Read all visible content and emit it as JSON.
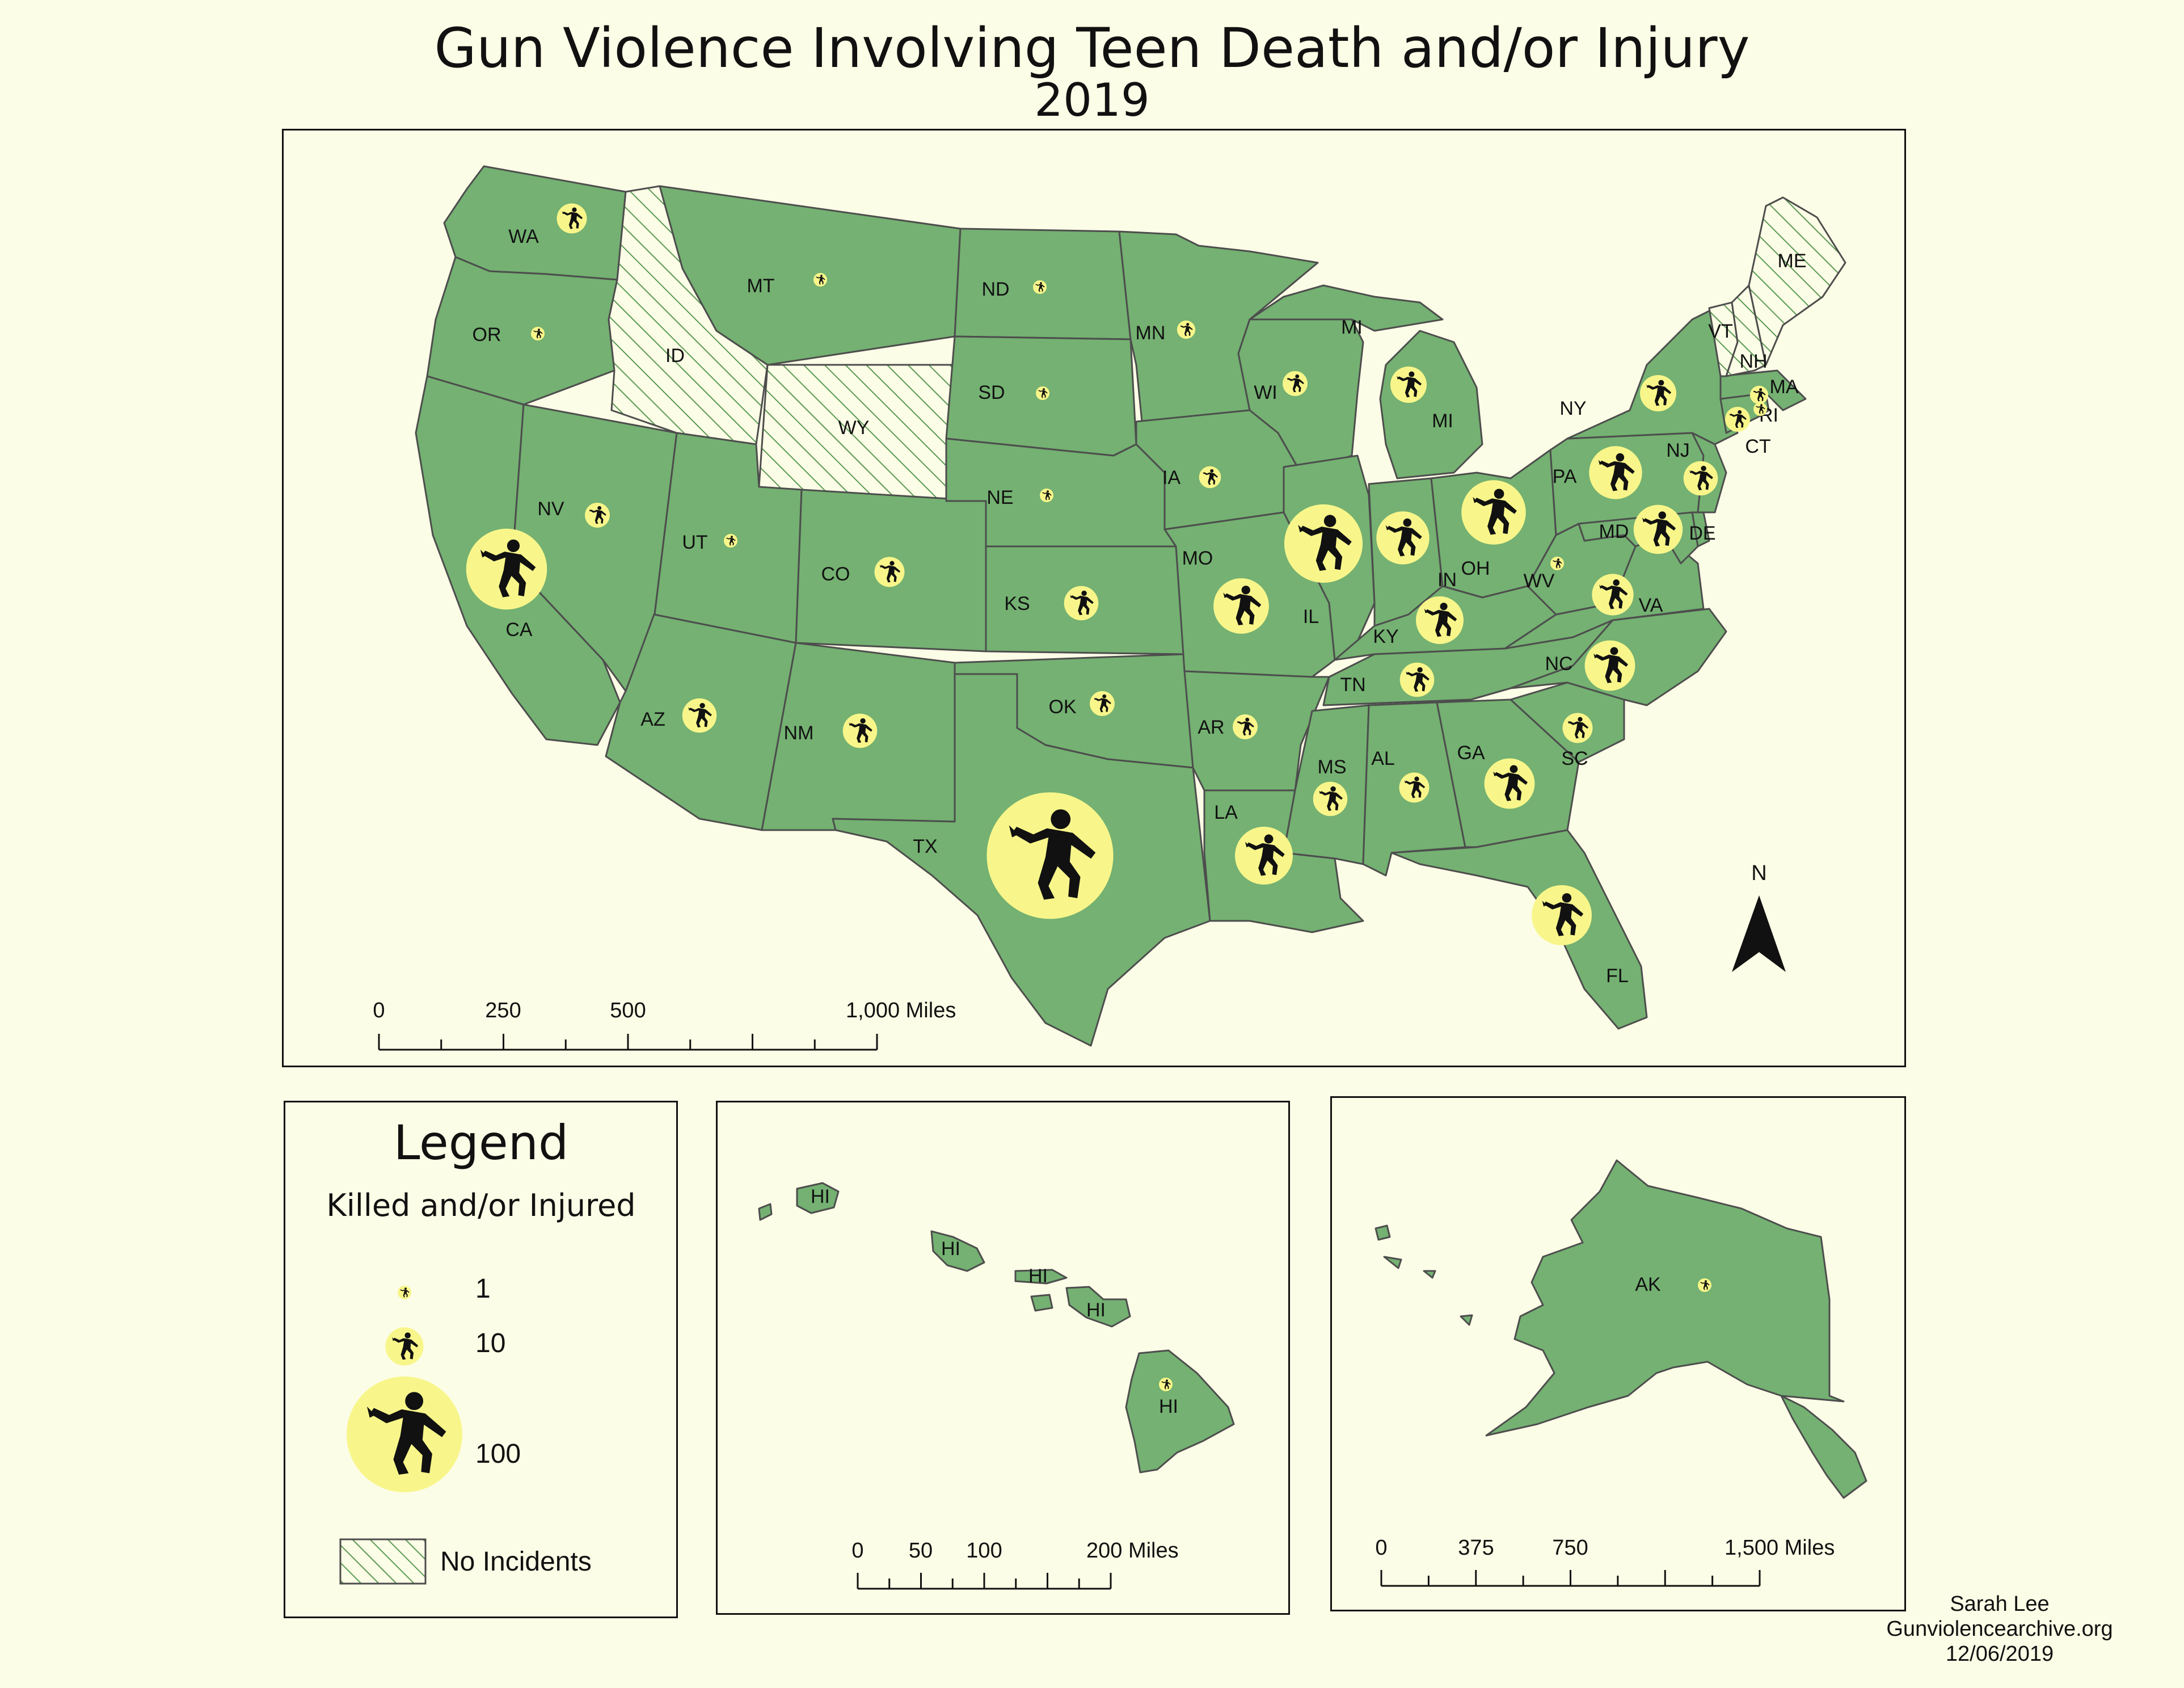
{
  "title": "Gun Violence Involving Teen Death and/or Injury",
  "subtitle": "2019",
  "colors": {
    "state": "#74b172",
    "stroke": "#4d4d4d",
    "circle": "#f8f68a",
    "background": "#fcfde6",
    "hatch": "#5a9a55"
  },
  "symbol_icon": "falling-person-icon",
  "north_arrow": {
    "label": "N",
    "icon": "north-arrow-icon"
  },
  "main_map": {
    "scalebar": {
      "labels": [
        "0",
        "250",
        "500",
        "1,000 Miles"
      ],
      "ticks": [
        0,
        125,
        250,
        375,
        500,
        625,
        750,
        875,
        1000
      ],
      "max": 1000
    },
    "no_incident_states": [
      "ID",
      "WY",
      "VT",
      "NH",
      "ME"
    ],
    "state_labels": [
      "WA",
      "OR",
      "CA",
      "NV",
      "ID",
      "MT",
      "WY",
      "UT",
      "CO",
      "AZ",
      "NM",
      "ND",
      "SD",
      "NE",
      "KS",
      "OK",
      "TX",
      "MN",
      "IA",
      "MO",
      "AR",
      "LA",
      "WI",
      "IL",
      "MI",
      "MI",
      "IN",
      "OH",
      "KY",
      "TN",
      "MS",
      "AL",
      "GA",
      "FL",
      "SC",
      "NC",
      "VA",
      "WV",
      "PA",
      "NY",
      "NJ",
      "DE",
      "MD",
      "CT",
      "RI",
      "MA",
      "NH",
      "VT",
      "ME"
    ],
    "incidents": [
      {
        "state": "TX",
        "count": 120
      },
      {
        "state": "CA",
        "count": 48
      },
      {
        "state": "IL",
        "count": 45
      },
      {
        "state": "OH",
        "count": 30
      },
      {
        "state": "FL",
        "count": 26
      },
      {
        "state": "LA",
        "count": 24
      },
      {
        "state": "MO",
        "count": 22
      },
      {
        "state": "GA",
        "count": 18
      },
      {
        "state": "IN",
        "count": 20
      },
      {
        "state": "PA",
        "count": 20
      },
      {
        "state": "NC",
        "count": 18
      },
      {
        "state": "MD",
        "count": 17
      },
      {
        "state": "KY",
        "count": 16
      },
      {
        "state": "VA",
        "count": 12
      },
      {
        "state": "NY",
        "count": 9
      },
      {
        "state": "MI",
        "count": 9
      },
      {
        "state": "TN",
        "count": 8
      },
      {
        "state": "NJ",
        "count": 8
      },
      {
        "state": "KS",
        "count": 8
      },
      {
        "state": "NM",
        "count": 8
      },
      {
        "state": "MS",
        "count": 8
      },
      {
        "state": "AZ",
        "count": 8
      },
      {
        "state": "AL",
        "count": 6
      },
      {
        "state": "CO",
        "count": 6
      },
      {
        "state": "WA",
        "count": 6
      },
      {
        "state": "SC",
        "count": 6
      },
      {
        "state": "WI",
        "count": 4
      },
      {
        "state": "CT",
        "count": 4
      },
      {
        "state": "AR",
        "count": 4
      },
      {
        "state": "OK",
        "count": 4
      },
      {
        "state": "NV",
        "count": 4
      },
      {
        "state": "IA",
        "count": 3
      },
      {
        "state": "MA",
        "count": 2
      },
      {
        "state": "MN",
        "count": 2
      },
      {
        "state": "NE",
        "count": 1
      },
      {
        "state": "OR",
        "count": 1
      },
      {
        "state": "UT",
        "count": 1
      },
      {
        "state": "MT",
        "count": 1
      },
      {
        "state": "ND",
        "count": 1
      },
      {
        "state": "SD",
        "count": 1
      },
      {
        "state": "WV",
        "count": 1
      },
      {
        "state": "RI",
        "count": 1
      }
    ]
  },
  "hawaii": {
    "labels": [
      "HI",
      "HI",
      "HI",
      "HI",
      "HI"
    ],
    "scalebar": {
      "labels": [
        "0",
        "50",
        "100",
        "200 Miles"
      ],
      "ticks": [
        0,
        25,
        50,
        75,
        100,
        125,
        150,
        175,
        200
      ],
      "max": 200
    },
    "incident": {
      "state": "HI",
      "count": 1
    }
  },
  "alaska": {
    "label": "AK",
    "scalebar": {
      "labels": [
        "0",
        "375",
        "750",
        "1,500 Miles"
      ],
      "ticks": [
        0,
        187.5,
        375,
        562.5,
        750,
        937.5,
        1125,
        1312.5,
        1500
      ],
      "max": 1500
    },
    "incident": {
      "state": "AK",
      "count": 1
    }
  },
  "legend": {
    "title": "Legend",
    "subtitle": "Killed and/or Injured",
    "sizes": [
      {
        "label": "1",
        "value": 1
      },
      {
        "label": "10",
        "value": 10
      },
      {
        "label": "100",
        "value": 100
      }
    ],
    "no_incidents_label": "No Incidents"
  },
  "credits": {
    "author": "Sarah Lee",
    "source": "Gunviolencearchive.org",
    "date": "12/06/2019"
  }
}
